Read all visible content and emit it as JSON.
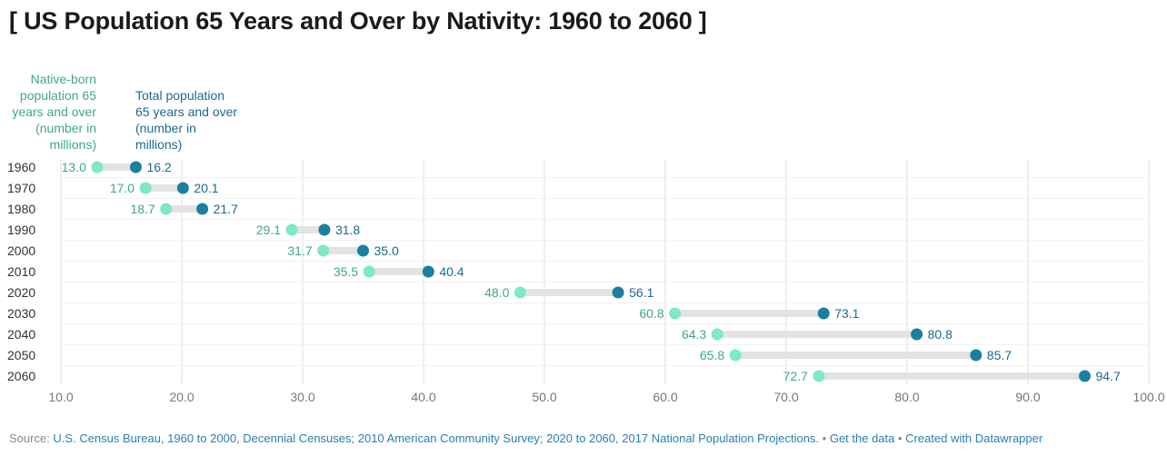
{
  "title": "[ US Population 65 Years and Over by Nativity: 1960 to 2060 ]",
  "colors": {
    "native": "#7fe8c4",
    "native_text": "#3fa88a",
    "total": "#1b7fa0",
    "total_text": "#1b6a8e",
    "range_bar": "#e3e3e3",
    "grid": "#dcdcdc",
    "axis_text": "#777777"
  },
  "chart_data": {
    "type": "dot-range",
    "categories": [
      "1960",
      "1970",
      "1980",
      "1990",
      "2000",
      "2010",
      "2020",
      "2030",
      "2040",
      "2050",
      "2060"
    ],
    "series": [
      {
        "name": "Native-born population 65 years and over (number in millions)",
        "values": [
          13.0,
          17.0,
          18.7,
          29.1,
          31.7,
          35.5,
          48.0,
          60.8,
          64.3,
          65.8,
          72.7
        ]
      },
      {
        "name": "Total population 65 years and over (number in millions)",
        "values": [
          16.2,
          20.1,
          21.7,
          31.8,
          35.0,
          40.4,
          56.1,
          73.1,
          80.8,
          85.7,
          94.7
        ]
      }
    ],
    "series_label_lines": [
      [
        "Native-born",
        "population 65",
        "years and over",
        "(number in",
        "millions)"
      ],
      [
        "Total population",
        "65 years and over",
        "(number in",
        "millions)"
      ]
    ],
    "xlim": [
      10,
      100
    ],
    "xticks": [
      "10.0",
      "20.0",
      "30.0",
      "40.0",
      "50.0",
      "60.0",
      "70.0",
      "80.0",
      "90.0",
      "100.0"
    ],
    "grid": true
  },
  "footer": {
    "source_label": "Source: ",
    "source_text": "U.S. Census Bureau, 1960 to 2000, Decennial Censuses; 2010 American Community Survey; 2020 to 2060, 2017 National Population Projections.",
    "separator": " • ",
    "get_data": "Get the data",
    "created_with": "Created with Datawrapper"
  }
}
